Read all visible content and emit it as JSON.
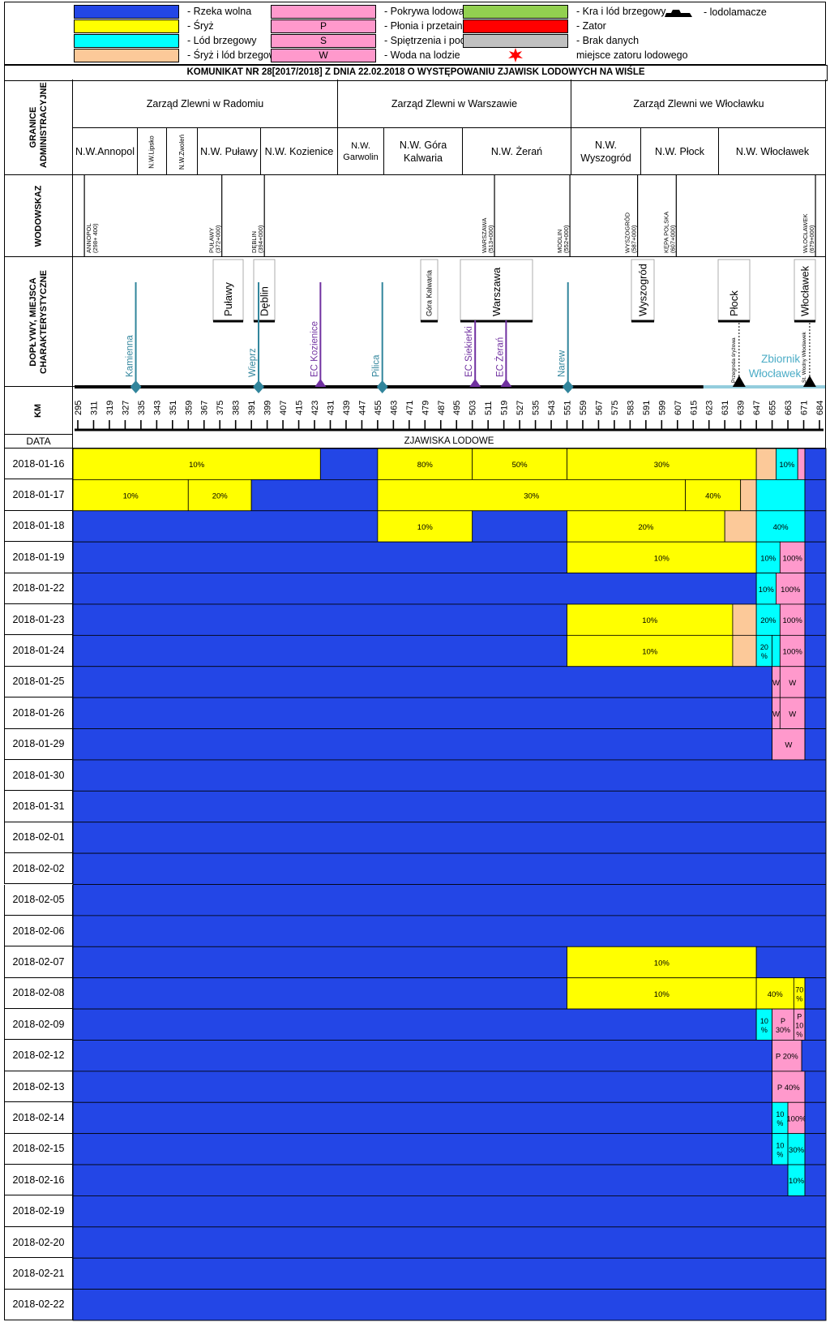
{
  "legend": [
    {
      "code": "",
      "label": "- Rzeka wolna",
      "color": "#2346e6"
    },
    {
      "code": "",
      "label": "- Śryż",
      "color": "#ffff00"
    },
    {
      "code": "",
      "label": "- Lód brzegowy",
      "color": "#00ffff"
    },
    {
      "code": "",
      "label": "- Śryż i lód brzegowy",
      "color": "#fcc999"
    },
    {
      "code": "",
      "label": "- Pokrywa lodowa",
      "color": "#ff99cc"
    },
    {
      "code": "P",
      "label": "- Płonia i przetainy",
      "color": "#ff99cc"
    },
    {
      "code": "S",
      "label": "- Spiętrzenia i podbitki",
      "color": "#ff99cc"
    },
    {
      "code": "W",
      "label": "- Woda na lodzie",
      "color": "#ff99cc"
    },
    {
      "code": "",
      "label": "- Kra i lód brzegowy",
      "color": "#92d050"
    },
    {
      "code": "",
      "label": "- Zator",
      "color": "#ff0000"
    },
    {
      "code": "",
      "label": "- Brak danych",
      "color": "#c0c0c0"
    },
    {
      "code": "",
      "label": "miejsce zatoru lodowego",
      "color": "#ff0000"
    }
  ],
  "icebreaker_label": "- lodolamacze",
  "title": "KOMUNIKAT NR 28[2017/2018] Z DNIA 22.02.2018 O WYSTĘPOWANIU ZJAWISK LODOWYCH NA WIŚLE",
  "row_labels": {
    "admin": "GRANICE ADMINISTRACYJNE",
    "gauges": "WODOWSKAZ",
    "tributaries": "DOPŁYWY, MIEJSCA CHARAKTERYSTYCZNE",
    "km": "KM",
    "date": "DATA",
    "phenomena": "ZJAWISKA LODOWE"
  },
  "boards": [
    {
      "name": "Zarząd Zlewni w Radomiu"
    },
    {
      "name": "Zarząd Zlewni w Warszawie"
    },
    {
      "name": "Zarząd Zlewni we Włocławku"
    }
  ],
  "sub_units": [
    {
      "name": "N.W.Annopol"
    },
    {
      "name": "N.W.Lipsko"
    },
    {
      "name": "N.W.Zwoleń"
    },
    {
      "name": "N.W. Puławy"
    },
    {
      "name": "N.W. Kozienice"
    },
    {
      "name": "N.W. Garwolin"
    },
    {
      "name": "N.W. Góra Kalwaria"
    },
    {
      "name": "N.W. Żerań"
    },
    {
      "name": "N.W. Wyszogród"
    },
    {
      "name": "N.W. Płock"
    },
    {
      "name": "N.W. Włocławek"
    }
  ],
  "gauges": [
    {
      "name": "ANNOPOL",
      "km": "(298+ 400)"
    },
    {
      "name": "PUŁAWY",
      "km": "(372+000)"
    },
    {
      "name": "DĘBLIN",
      "km": "(394+000)"
    },
    {
      "name": "WARSZAWA",
      "km": "(513+000)"
    },
    {
      "name": "MODLIN",
      "km": "(552+000)"
    },
    {
      "name": "WYSZOGRÓD",
      "km": "(587+000)"
    },
    {
      "name": "KĘPA POLSKA",
      "km": "(607+000)"
    },
    {
      "name": "WŁOCŁAWEK",
      "km": "(679+000)"
    }
  ],
  "towns": [
    "Puławy",
    "Dęblin",
    "Góra Kalwaria",
    "Warszawa",
    "Wyszogród",
    "Płock",
    "Włocławek"
  ],
  "tributaries": [
    {
      "name": "Kamienna",
      "type": "river"
    },
    {
      "name": "Wieprz",
      "type": "river"
    },
    {
      "name": "EC Kozienice",
      "type": "plant"
    },
    {
      "name": "Pilica",
      "type": "river"
    },
    {
      "name": "EC Siekierki",
      "type": "plant"
    },
    {
      "name": "EC Żerań",
      "type": "plant"
    },
    {
      "name": "Narew",
      "type": "river"
    },
    {
      "name": "Przegroda śryżowa",
      "type": "barrier"
    },
    {
      "name": "St. Wodny Włocławek",
      "type": "barrier"
    }
  ],
  "reservoir": "Zbiornik Włocławek",
  "chart_data": {
    "type": "table",
    "xlabel": "KM",
    "km_ticks": [
      295,
      311,
      319,
      327,
      335,
      343,
      351,
      359,
      367,
      375,
      383,
      391,
      399,
      407,
      415,
      423,
      431,
      439,
      447,
      455,
      463,
      471,
      479,
      487,
      495,
      503,
      511,
      519,
      527,
      535,
      543,
      551,
      559,
      567,
      575,
      583,
      591,
      599,
      607,
      615,
      623,
      631,
      639,
      647,
      655,
      663,
      671,
      684
    ],
    "rows": [
      {
        "date": "2018-01-16",
        "segments": [
          {
            "from": 295,
            "to": 426,
            "state": "sryz",
            "label": "10%"
          },
          {
            "from": 426,
            "to": 455,
            "state": "wolna",
            "label": ""
          },
          {
            "from": 455,
            "to": 503,
            "state": "sryz",
            "label": "80%"
          },
          {
            "from": 503,
            "to": 551,
            "state": "sryz",
            "label": "50%"
          },
          {
            "from": 551,
            "to": 647,
            "state": "sryz",
            "label": "30%"
          },
          {
            "from": 647,
            "to": 657,
            "state": "sryz_brzeg",
            "label": ""
          },
          {
            "from": 657,
            "to": 668,
            "state": "brzegowy",
            "label": "10%"
          },
          {
            "from": 668,
            "to": 672,
            "state": "pokrywa",
            "label": ""
          },
          {
            "from": 672,
            "to": 684,
            "state": "wolna",
            "label": ""
          }
        ]
      },
      {
        "date": "2018-01-17",
        "segments": [
          {
            "from": 295,
            "to": 359,
            "state": "sryz",
            "label": "10%"
          },
          {
            "from": 359,
            "to": 391,
            "state": "sryz",
            "label": "20%"
          },
          {
            "from": 391,
            "to": 455,
            "state": "wolna",
            "label": ""
          },
          {
            "from": 455,
            "to": 611,
            "state": "sryz",
            "label": "30%"
          },
          {
            "from": 611,
            "to": 639,
            "state": "sryz",
            "label": "40%"
          },
          {
            "from": 639,
            "to": 647,
            "state": "sryz_brzeg",
            "label": ""
          },
          {
            "from": 647,
            "to": 672,
            "state": "brzegowy",
            "label": ""
          },
          {
            "from": 672,
            "to": 684,
            "state": "wolna",
            "label": ""
          }
        ]
      },
      {
        "date": "2018-01-18",
        "segments": [
          {
            "from": 295,
            "to": 455,
            "state": "wolna",
            "label": ""
          },
          {
            "from": 455,
            "to": 503,
            "state": "sryz",
            "label": "10%"
          },
          {
            "from": 503,
            "to": 551,
            "state": "wolna",
            "label": ""
          },
          {
            "from": 551,
            "to": 631,
            "state": "sryz",
            "label": "20%"
          },
          {
            "from": 631,
            "to": 647,
            "state": "sryz_brzeg",
            "label": ""
          },
          {
            "from": 647,
            "to": 672,
            "state": "brzegowy",
            "label": "40%"
          },
          {
            "from": 672,
            "to": 684,
            "state": "wolna",
            "label": ""
          }
        ]
      },
      {
        "date": "2018-01-19",
        "segments": [
          {
            "from": 295,
            "to": 551,
            "state": "wolna",
            "label": ""
          },
          {
            "from": 551,
            "to": 647,
            "state": "sryz",
            "label": "10%"
          },
          {
            "from": 647,
            "to": 659,
            "state": "brzegowy",
            "label": "10%"
          },
          {
            "from": 659,
            "to": 672,
            "state": "pokrywa",
            "label": "100%"
          },
          {
            "from": 672,
            "to": 684,
            "state": "wolna",
            "label": ""
          }
        ]
      },
      {
        "date": "2018-01-22",
        "segments": [
          {
            "from": 295,
            "to": 647,
            "state": "wolna",
            "label": ""
          },
          {
            "from": 647,
            "to": 657,
            "state": "brzegowy",
            "label": "10%"
          },
          {
            "from": 657,
            "to": 672,
            "state": "pokrywa",
            "label": "100%"
          },
          {
            "from": 672,
            "to": 684,
            "state": "wolna",
            "label": ""
          }
        ]
      },
      {
        "date": "2018-01-23",
        "segments": [
          {
            "from": 295,
            "to": 551,
            "state": "wolna",
            "label": ""
          },
          {
            "from": 551,
            "to": 635,
            "state": "sryz",
            "label": "10%"
          },
          {
            "from": 635,
            "to": 647,
            "state": "sryz_brzeg",
            "label": ""
          },
          {
            "from": 647,
            "to": 659,
            "state": "brzegowy",
            "label": "20%"
          },
          {
            "from": 659,
            "to": 672,
            "state": "pokrywa",
            "label": "100%"
          },
          {
            "from": 672,
            "to": 684,
            "state": "wolna",
            "label": ""
          }
        ]
      },
      {
        "date": "2018-01-24",
        "segments": [
          {
            "from": 295,
            "to": 551,
            "state": "wolna",
            "label": ""
          },
          {
            "from": 551,
            "to": 635,
            "state": "sryz",
            "label": "10%"
          },
          {
            "from": 635,
            "to": 647,
            "state": "sryz_brzeg",
            "label": ""
          },
          {
            "from": 647,
            "to": 655,
            "state": "brzegowy",
            "label": "20 %"
          },
          {
            "from": 655,
            "to": 659,
            "state": "brzegowy",
            "label": ""
          },
          {
            "from": 659,
            "to": 672,
            "state": "pokrywa",
            "label": "100%"
          },
          {
            "from": 672,
            "to": 684,
            "state": "wolna",
            "label": ""
          }
        ]
      },
      {
        "date": "2018-01-25",
        "segments": [
          {
            "from": 295,
            "to": 655,
            "state": "wolna",
            "label": ""
          },
          {
            "from": 655,
            "to": 659,
            "state": "pokrywa",
            "label": "W"
          },
          {
            "from": 659,
            "to": 672,
            "state": "pokrywa",
            "label": "W"
          },
          {
            "from": 672,
            "to": 684,
            "state": "wolna",
            "label": ""
          }
        ]
      },
      {
        "date": "2018-01-26",
        "segments": [
          {
            "from": 295,
            "to": 655,
            "state": "wolna",
            "label": ""
          },
          {
            "from": 655,
            "to": 659,
            "state": "pokrywa",
            "label": "W"
          },
          {
            "from": 659,
            "to": 672,
            "state": "pokrywa",
            "label": "W"
          },
          {
            "from": 672,
            "to": 684,
            "state": "wolna",
            "label": ""
          }
        ]
      },
      {
        "date": "2018-01-29",
        "segments": [
          {
            "from": 295,
            "to": 655,
            "state": "wolna",
            "label": ""
          },
          {
            "from": 655,
            "to": 672,
            "state": "pokrywa",
            "label": "W"
          },
          {
            "from": 672,
            "to": 684,
            "state": "wolna",
            "label": ""
          }
        ]
      },
      {
        "date": "2018-01-30",
        "segments": [
          {
            "from": 295,
            "to": 684,
            "state": "wolna",
            "label": ""
          }
        ]
      },
      {
        "date": "2018-01-31",
        "segments": [
          {
            "from": 295,
            "to": 684,
            "state": "wolna",
            "label": ""
          }
        ]
      },
      {
        "date": "2018-02-01",
        "segments": [
          {
            "from": 295,
            "to": 684,
            "state": "wolna",
            "label": ""
          }
        ]
      },
      {
        "date": "2018-02-02",
        "segments": [
          {
            "from": 295,
            "to": 684,
            "state": "wolna",
            "label": ""
          }
        ]
      },
      {
        "date": "2018-02-05",
        "segments": [
          {
            "from": 295,
            "to": 684,
            "state": "wolna",
            "label": ""
          }
        ]
      },
      {
        "date": "2018-02-06",
        "segments": [
          {
            "from": 295,
            "to": 684,
            "state": "wolna",
            "label": ""
          }
        ]
      },
      {
        "date": "2018-02-07",
        "segments": [
          {
            "from": 295,
            "to": 551,
            "state": "wolna",
            "label": ""
          },
          {
            "from": 551,
            "to": 647,
            "state": "sryz",
            "label": "10%"
          },
          {
            "from": 647,
            "to": 684,
            "state": "wolna",
            "label": ""
          }
        ]
      },
      {
        "date": "2018-02-08",
        "segments": [
          {
            "from": 295,
            "to": 551,
            "state": "wolna",
            "label": ""
          },
          {
            "from": 551,
            "to": 647,
            "state": "sryz",
            "label": "10%"
          },
          {
            "from": 647,
            "to": 666,
            "state": "sryz",
            "label": "40%"
          },
          {
            "from": 666,
            "to": 672,
            "state": "sryz",
            "label": "70 %"
          },
          {
            "from": 672,
            "to": 684,
            "state": "wolna",
            "label": ""
          }
        ]
      },
      {
        "date": "2018-02-09",
        "segments": [
          {
            "from": 295,
            "to": 647,
            "state": "wolna",
            "label": ""
          },
          {
            "from": 647,
            "to": 655,
            "state": "brzegowy",
            "label": "10 %"
          },
          {
            "from": 655,
            "to": 666,
            "state": "pokrywa",
            "label": "P 30%"
          },
          {
            "from": 666,
            "to": 672,
            "state": "pokrywa",
            "label": "P 10 %"
          },
          {
            "from": 672,
            "to": 684,
            "state": "wolna",
            "label": ""
          }
        ]
      },
      {
        "date": "2018-02-12",
        "segments": [
          {
            "from": 295,
            "to": 655,
            "state": "wolna",
            "label": ""
          },
          {
            "from": 655,
            "to": 670,
            "state": "pokrywa",
            "label": "P 20%"
          },
          {
            "from": 670,
            "to": 684,
            "state": "wolna",
            "label": ""
          }
        ]
      },
      {
        "date": "2018-02-13",
        "segments": [
          {
            "from": 295,
            "to": 655,
            "state": "wolna",
            "label": ""
          },
          {
            "from": 655,
            "to": 672,
            "state": "pokrywa",
            "label": "P 40%"
          },
          {
            "from": 672,
            "to": 684,
            "state": "wolna",
            "label": ""
          }
        ]
      },
      {
        "date": "2018-02-14",
        "segments": [
          {
            "from": 295,
            "to": 655,
            "state": "wolna",
            "label": ""
          },
          {
            "from": 655,
            "to": 663,
            "state": "brzegowy",
            "label": "10 %"
          },
          {
            "from": 663,
            "to": 672,
            "state": "pokrywa",
            "label": "100%"
          },
          {
            "from": 672,
            "to": 684,
            "state": "wolna",
            "label": ""
          }
        ]
      },
      {
        "date": "2018-02-15",
        "segments": [
          {
            "from": 295,
            "to": 655,
            "state": "wolna",
            "label": ""
          },
          {
            "from": 655,
            "to": 663,
            "state": "brzegowy",
            "label": "10 %"
          },
          {
            "from": 663,
            "to": 672,
            "state": "brzegowy",
            "label": "30%"
          },
          {
            "from": 672,
            "to": 684,
            "state": "wolna",
            "label": ""
          }
        ]
      },
      {
        "date": "2018-02-16",
        "segments": [
          {
            "from": 295,
            "to": 663,
            "state": "wolna",
            "label": ""
          },
          {
            "from": 663,
            "to": 672,
            "state": "brzegowy",
            "label": "10%"
          },
          {
            "from": 672,
            "to": 684,
            "state": "wolna",
            "label": ""
          }
        ]
      },
      {
        "date": "2018-02-19",
        "segments": [
          {
            "from": 295,
            "to": 684,
            "state": "wolna",
            "label": ""
          }
        ]
      },
      {
        "date": "2018-02-20",
        "segments": [
          {
            "from": 295,
            "to": 684,
            "state": "wolna",
            "label": ""
          }
        ]
      },
      {
        "date": "2018-02-21",
        "segments": [
          {
            "from": 295,
            "to": 684,
            "state": "wolna",
            "label": ""
          }
        ]
      },
      {
        "date": "2018-02-22",
        "segments": [
          {
            "from": 295,
            "to": 684,
            "state": "wolna",
            "label": ""
          }
        ]
      }
    ],
    "state_colors": {
      "wolna": "#2346e6",
      "sryz": "#ffff00",
      "brzegowy": "#00ffff",
      "sryz_brzeg": "#fcc999",
      "pokrywa": "#ff99cc",
      "kra": "#92d050",
      "zator": "#ff0000",
      "brak": "#c0c0c0"
    }
  }
}
